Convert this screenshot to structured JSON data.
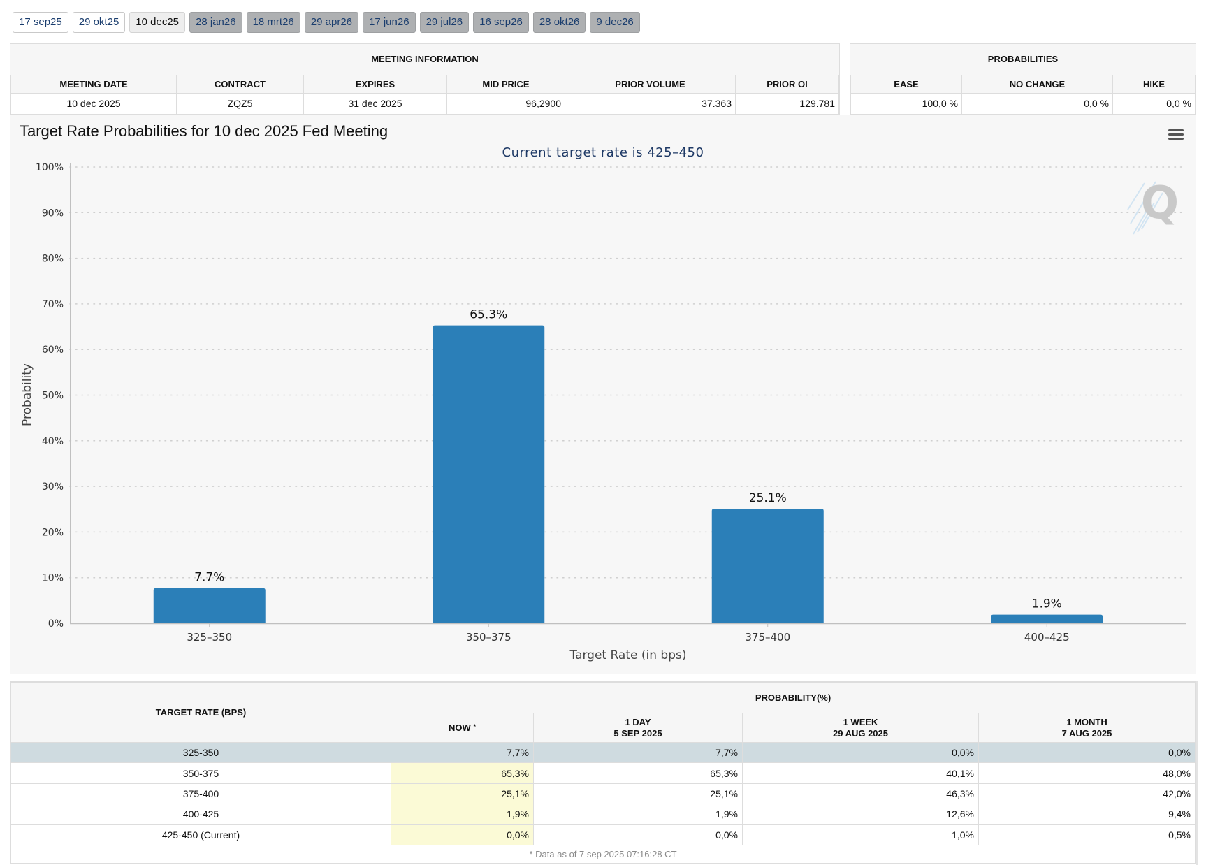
{
  "tabs": [
    {
      "label": "17 sep25",
      "state": "past"
    },
    {
      "label": "29 okt25",
      "state": "past"
    },
    {
      "label": "10 dec25",
      "state": "active"
    },
    {
      "label": "28 jan26",
      "state": "future"
    },
    {
      "label": "18 mrt26",
      "state": "future"
    },
    {
      "label": "29 apr26",
      "state": "future"
    },
    {
      "label": "17 jun26",
      "state": "future"
    },
    {
      "label": "29 jul26",
      "state": "future"
    },
    {
      "label": "16 sep26",
      "state": "future"
    },
    {
      "label": "28 okt26",
      "state": "future"
    },
    {
      "label": "9 dec26",
      "state": "future"
    }
  ],
  "meeting_info": {
    "title": "MEETING INFORMATION",
    "headers": [
      "MEETING DATE",
      "CONTRACT",
      "EXPIRES",
      "MID PRICE",
      "PRIOR VOLUME",
      "PRIOR OI"
    ],
    "values": [
      "10 dec 2025",
      "ZQZ5",
      "31 dec 2025",
      "96,2900",
      "37.363",
      "129.781"
    ]
  },
  "probabilities": {
    "title": "PROBABILITIES",
    "headers": [
      "EASE",
      "NO CHANGE",
      "HIKE"
    ],
    "values": [
      "100,0 %",
      "0,0 %",
      "0,0 %"
    ]
  },
  "chart_data": {
    "type": "bar",
    "title": "Target Rate Probabilities for 10 dec 2025 Fed Meeting",
    "subtitle": "Current target rate is 425–450",
    "categories": [
      "325–350",
      "350–375",
      "375–400",
      "400–425"
    ],
    "values": [
      7.7,
      65.3,
      25.1,
      1.9
    ],
    "data_labels": [
      "7.7%",
      "65.3%",
      "25.1%",
      "1.9%"
    ],
    "xlabel": "Target Rate (in bps)",
    "ylabel": "Probability",
    "ylim": [
      0,
      100
    ],
    "yticks": [
      0,
      10,
      20,
      30,
      40,
      50,
      60,
      70,
      80,
      90,
      100
    ],
    "ytick_labels": [
      "0%",
      "10%",
      "20%",
      "30%",
      "40%",
      "50%",
      "60%",
      "70%",
      "80%",
      "90%",
      "100%"
    ],
    "grid": true,
    "bar_color": "#2b7fb8",
    "watermark": "Q"
  },
  "prob_table": {
    "col_target": "TARGET RATE (BPS)",
    "group_header": "PROBABILITY(%)",
    "col_now": "NOW",
    "col_now_mark": "*",
    "col_1day": [
      "1 DAY",
      "5 SEP 2025"
    ],
    "col_1week": [
      "1 WEEK",
      "29 AUG 2025"
    ],
    "col_1month": [
      "1 MONTH",
      "7 AUG 2025"
    ],
    "rows": [
      {
        "rate": "325-350",
        "now": "7,7%",
        "day": "7,7%",
        "week": "0,0%",
        "month": "0,0%",
        "highlight": true
      },
      {
        "rate": "350-375",
        "now": "65,3%",
        "day": "65,3%",
        "week": "40,1%",
        "month": "48,0%",
        "highlight": false
      },
      {
        "rate": "375-400",
        "now": "25,1%",
        "day": "25,1%",
        "week": "46,3%",
        "month": "42,0%",
        "highlight": false
      },
      {
        "rate": "400-425",
        "now": "1,9%",
        "day": "1,9%",
        "week": "12,6%",
        "month": "9,4%",
        "highlight": false
      },
      {
        "rate": "425-450 (Current)",
        "now": "0,0%",
        "day": "0,0%",
        "week": "1,0%",
        "month": "0,5%",
        "highlight": false
      }
    ],
    "footnote": "* Data as of 7 sep 2025 07:16:28 CT"
  }
}
